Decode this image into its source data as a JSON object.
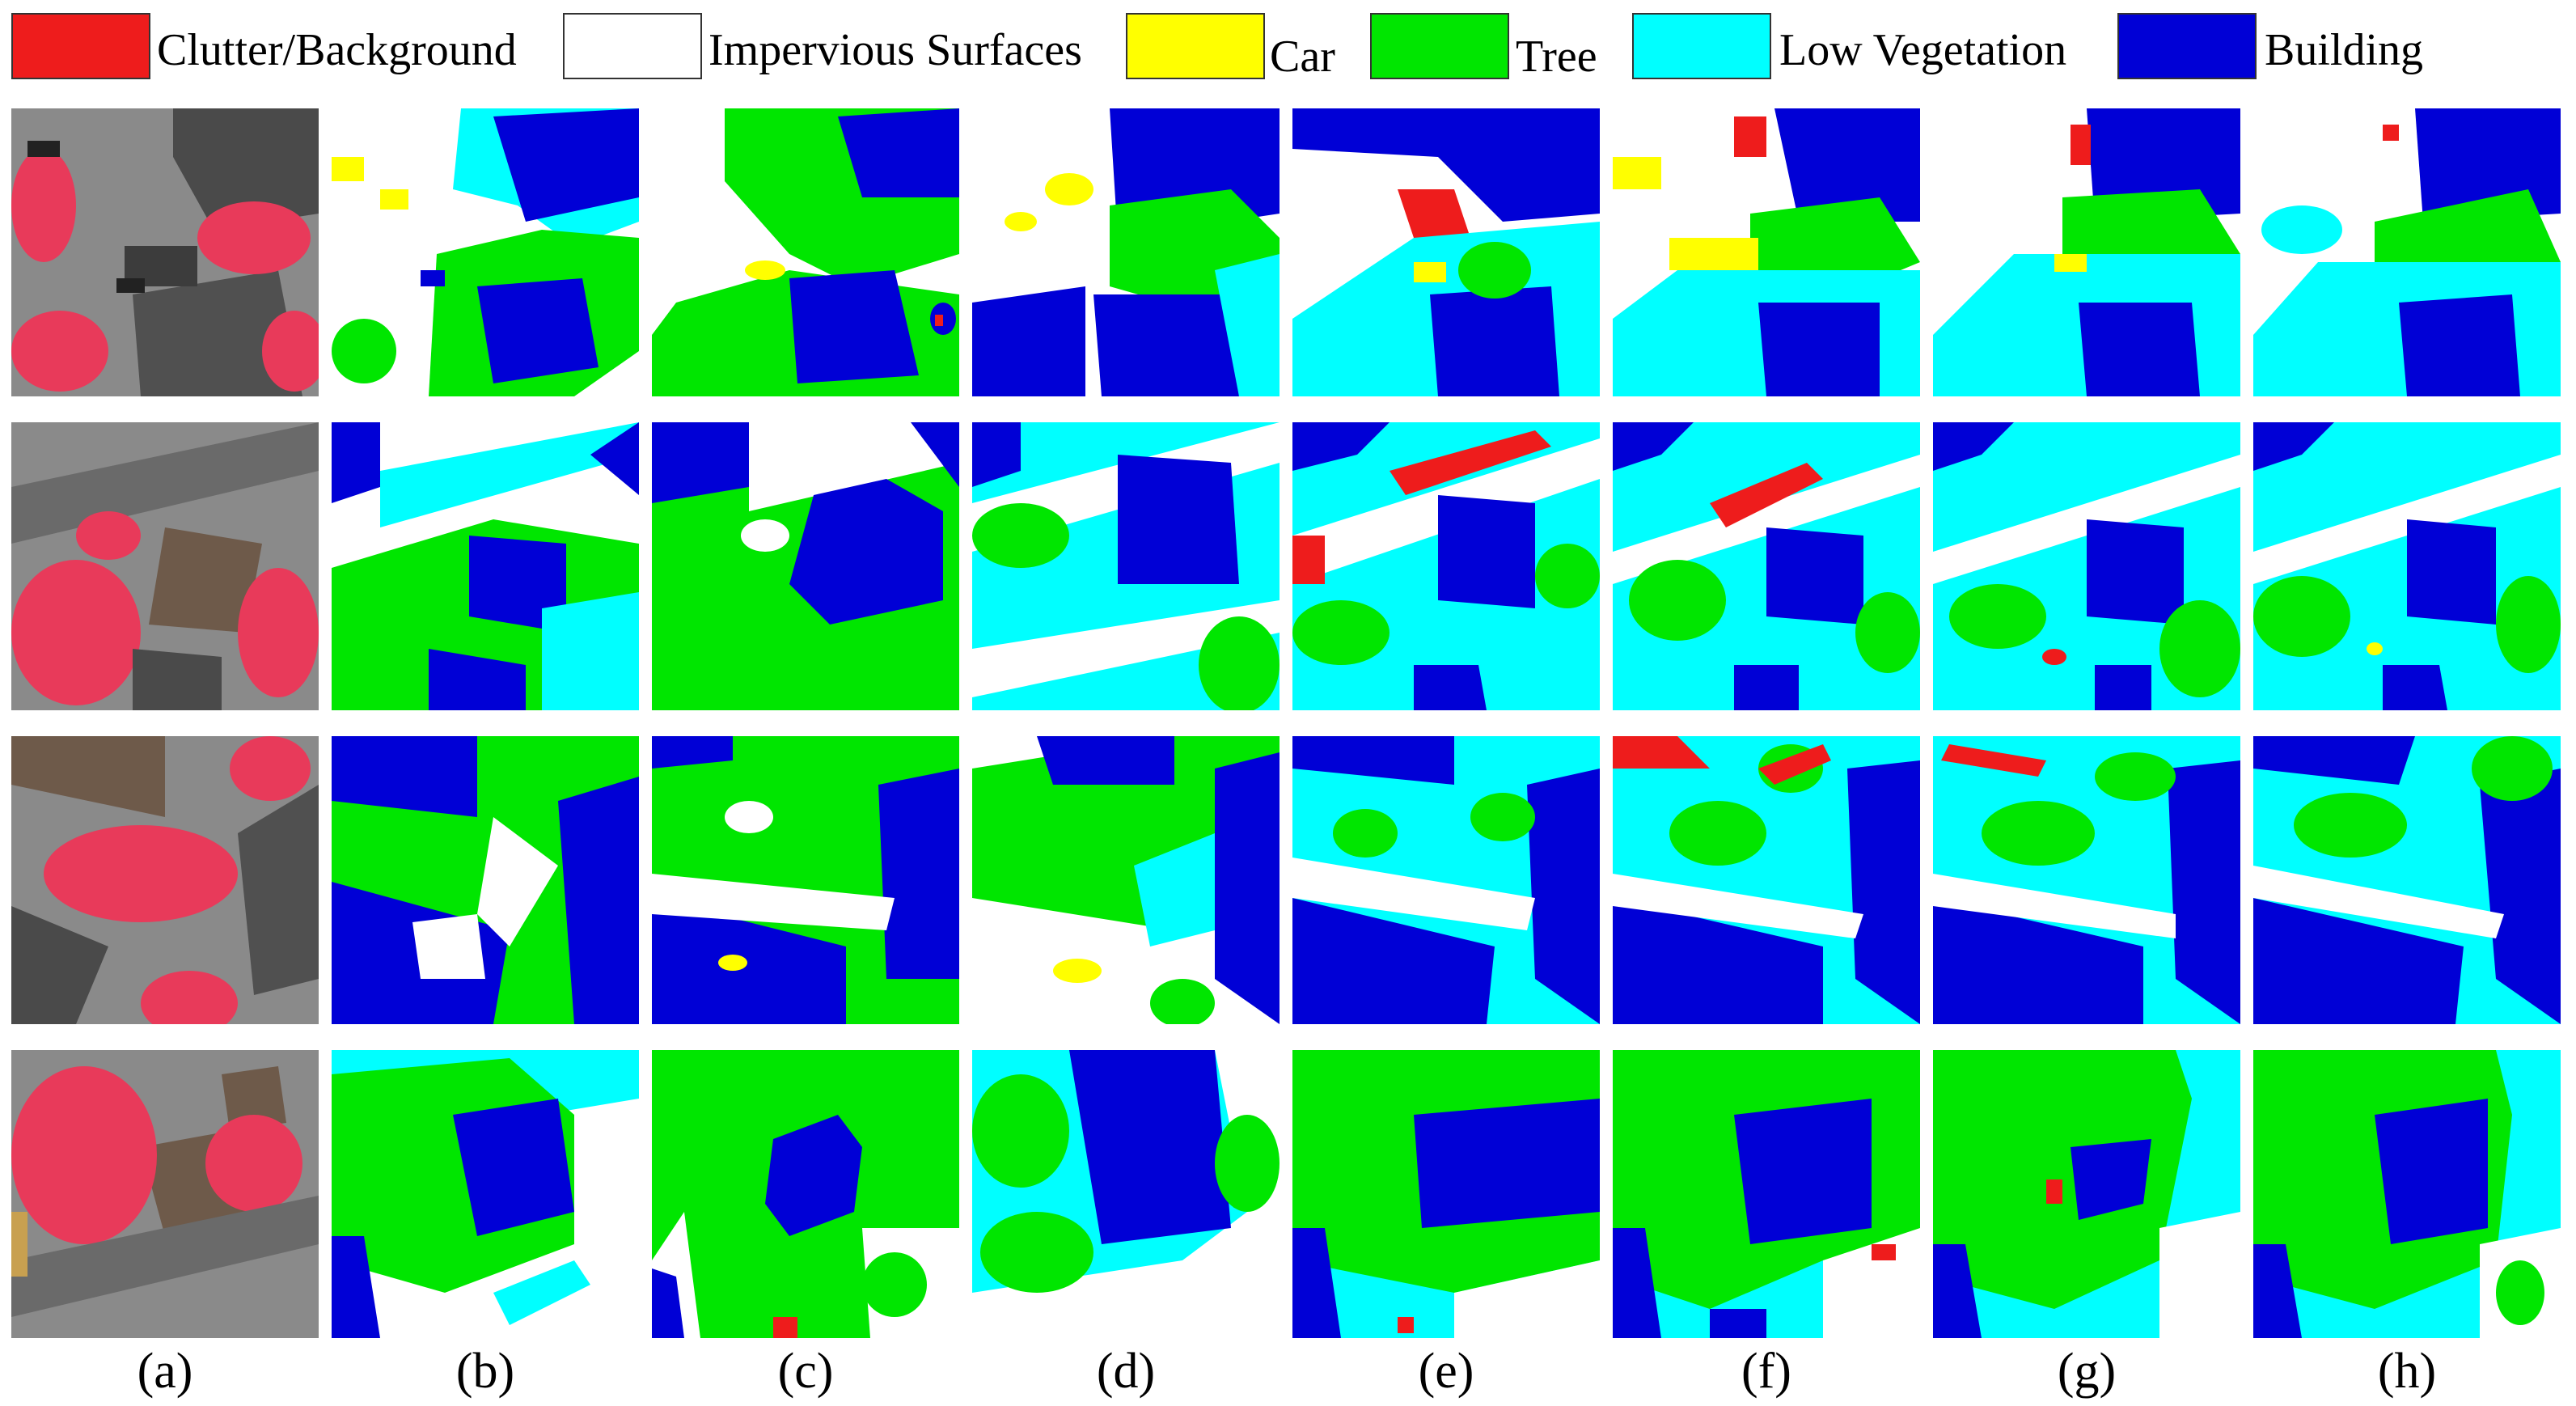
{
  "legend": {
    "items": [
      {
        "key": "clutter",
        "label": "Clutter/Background",
        "color": "#ee1c1c"
      },
      {
        "key": "impervious",
        "label": "Impervious Surfaces",
        "color": "#ffffff"
      },
      {
        "key": "car",
        "label": "Car",
        "color": "#ffff00"
      },
      {
        "key": "tree",
        "label": "Tree",
        "color": "#00e600"
      },
      {
        "key": "lowveg",
        "label": "Low Vegetation",
        "color": "#00ffff"
      },
      {
        "key": "building",
        "label": "Building",
        "color": "#0000d6"
      }
    ]
  },
  "columns": {
    "captions": [
      "(a)",
      "(b)",
      "(c)",
      "(d)",
      "(e)",
      "(f)",
      "(g)",
      "(h)"
    ]
  },
  "colors": {
    "aerial_ground": "#8c8c8c",
    "aerial_vegetation": "#e83a5a",
    "aerial_roof": "#4a4a4a",
    "aerial_roof_brown": "#6e5a4a"
  }
}
